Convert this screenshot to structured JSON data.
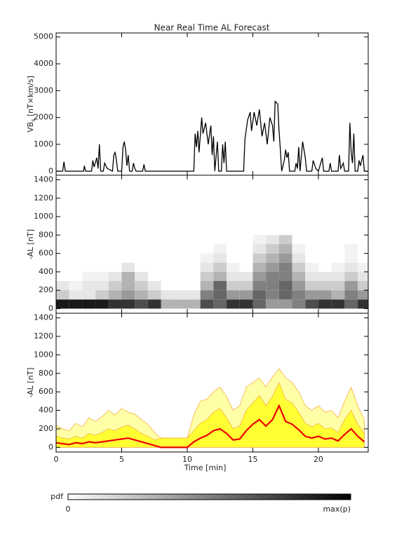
{
  "chart_data": [
    {
      "type": "line",
      "title": "Near Real Time AL Forecast",
      "ylabel": [
        "VB",
        "s",
        " [nT×km/s]"
      ],
      "xlim": [
        0,
        23.8
      ],
      "xticks": [
        0,
        5,
        10,
        15,
        20
      ],
      "show_xtick_labels": false,
      "ylim": [
        -150,
        5150
      ],
      "yticks": [
        0,
        1000,
        2000,
        3000,
        4000,
        5000
      ],
      "color": "#000000",
      "x": [
        0,
        0.5,
        0.6,
        0.7,
        2.1,
        2.15,
        2.25,
        2.7,
        2.8,
        2.9,
        3.1,
        3.2,
        3.3,
        3.4,
        3.6,
        3.7,
        3.9,
        4.3,
        4.4,
        4.5,
        4.6,
        4.7,
        5.0,
        5.1,
        5.2,
        5.3,
        5.4,
        5.5,
        5.6,
        5.8,
        5.9,
        6.0,
        6.1,
        6.6,
        6.7,
        6.8,
        10.5,
        10.6,
        10.7,
        10.8,
        10.9,
        11.1,
        11.2,
        11.4,
        11.6,
        11.8,
        11.9,
        12.0,
        12.1,
        12.3,
        12.4,
        12.6,
        12.7,
        12.8,
        12.9,
        13.0,
        14.3,
        14.4,
        14.6,
        14.8,
        14.9,
        15.1,
        15.3,
        15.5,
        15.7,
        15.9,
        16.1,
        16.3,
        16.5,
        16.6,
        16.7,
        16.9,
        17.0,
        17.1,
        17.2,
        17.4,
        17.5,
        17.6,
        17.7,
        17.8,
        18.2,
        18.3,
        18.4,
        18.5,
        18.6,
        18.8,
        19.0,
        19.1,
        19.5,
        19.6,
        19.8,
        20.0,
        20.3,
        20.4,
        20.8,
        20.9,
        21.0,
        21.5,
        21.6,
        21.7,
        21.9,
        22.0,
        22.3,
        22.4,
        22.5,
        22.6,
        22.7,
        22.8,
        23.0,
        23.1,
        23.2,
        23.4,
        23.5,
        23.8
      ],
      "values": [
        0,
        0,
        350,
        0,
        0,
        200,
        0,
        0,
        400,
        150,
        500,
        100,
        1000,
        0,
        0,
        300,
        100,
        0,
        600,
        700,
        400,
        0,
        0,
        900,
        1100,
        800,
        200,
        600,
        0,
        0,
        300,
        100,
        0,
        0,
        250,
        0,
        0,
        1400,
        900,
        1500,
        700,
        2000,
        1400,
        1800,
        1000,
        1700,
        600,
        1300,
        0,
        1100,
        0,
        0,
        1000,
        300,
        1100,
        0,
        0,
        1200,
        1900,
        2200,
        1500,
        2200,
        1700,
        2300,
        1300,
        1800,
        1000,
        2000,
        1700,
        1100,
        2600,
        2500,
        1500,
        800,
        0,
        400,
        800,
        500,
        700,
        0,
        0,
        300,
        100,
        900,
        0,
        1100,
        500,
        0,
        0,
        400,
        100,
        0,
        500,
        0,
        0,
        300,
        0,
        0,
        600,
        100,
        300,
        0,
        0,
        1800,
        700,
        300,
        1400,
        0,
        0,
        400,
        200,
        600,
        0,
        0
      ]
    },
    {
      "type": "heatmap",
      "ylabel": [
        "-AL [nT]"
      ],
      "xlim": [
        0,
        23.8
      ],
      "xticks": [
        0,
        5,
        10,
        15,
        20
      ],
      "show_xtick_labels": false,
      "ylim": [
        -50,
        1450
      ],
      "yticks": [
        0,
        200,
        400,
        600,
        800,
        1000,
        1200,
        1400
      ],
      "x_bins": [
        0,
        1,
        2,
        3,
        4,
        5,
        6,
        7,
        8,
        9,
        10,
        11,
        12,
        13,
        14,
        15,
        16,
        17,
        18,
        19,
        20,
        21,
        22,
        23,
        24
      ],
      "y_bins": [
        0,
        100,
        200,
        300,
        400,
        500,
        600,
        700,
        800
      ],
      "z": [
        [
          0.9,
          0.9,
          0.9,
          0.9,
          0.8,
          0.8,
          0.7,
          0.8,
          0.3,
          0.3,
          0.3,
          0.7,
          0.6,
          0.8,
          0.8,
          0.6,
          0.4,
          0.4,
          0.5,
          0.7,
          0.8,
          0.8,
          0.6,
          0.8
        ],
        [
          0.2,
          0.1,
          0.1,
          0.2,
          0.3,
          0.4,
          0.3,
          0.2,
          0.1,
          0.1,
          0.1,
          0.5,
          0.6,
          0.4,
          0.4,
          0.6,
          0.5,
          0.6,
          0.5,
          0.4,
          0.4,
          0.3,
          0.5,
          0.4
        ],
        [
          0.1,
          0.05,
          0.1,
          0.1,
          0.2,
          0.3,
          0.2,
          0.1,
          0,
          0,
          0,
          0.3,
          0.6,
          0.2,
          0.2,
          0.5,
          0.5,
          0.6,
          0.4,
          0.2,
          0.2,
          0.2,
          0.4,
          0.2
        ],
        [
          0,
          0,
          0.05,
          0.05,
          0.1,
          0.3,
          0.1,
          0,
          0,
          0,
          0,
          0.2,
          0.3,
          0.1,
          0.1,
          0.4,
          0.5,
          0.5,
          0.3,
          0.1,
          0.1,
          0.1,
          0.2,
          0.1
        ],
        [
          0,
          0,
          0,
          0,
          0,
          0.1,
          0,
          0,
          0,
          0,
          0,
          0.1,
          0.2,
          0.05,
          0,
          0.3,
          0.4,
          0.5,
          0.2,
          0.05,
          0,
          0.05,
          0.1,
          0.05
        ],
        [
          0,
          0,
          0,
          0,
          0,
          0,
          0,
          0,
          0,
          0,
          0,
          0.05,
          0.1,
          0,
          0,
          0.2,
          0.3,
          0.4,
          0.1,
          0,
          0,
          0,
          0.05,
          0
        ],
        [
          0,
          0,
          0,
          0,
          0,
          0,
          0,
          0,
          0,
          0,
          0,
          0,
          0.05,
          0,
          0,
          0.1,
          0.2,
          0.3,
          0.05,
          0,
          0,
          0,
          0.05,
          0
        ],
        [
          0,
          0,
          0,
          0,
          0,
          0,
          0,
          0,
          0,
          0,
          0,
          0,
          0,
          0,
          0,
          0.05,
          0.1,
          0.2,
          0,
          0,
          0,
          0,
          0,
          0
        ]
      ],
      "colorbar": {
        "label": "pdf",
        "min_label": "0",
        "max_label": "max(p)"
      }
    },
    {
      "type": "area",
      "ylabel": [
        "-AL [nT]"
      ],
      "xlabel": "Time [min]",
      "xlim": [
        0,
        23.8
      ],
      "xticks": [
        0,
        5,
        10,
        15,
        20
      ],
      "show_xtick_labels": true,
      "ylim": [
        -50,
        1450
      ],
      "yticks": [
        0,
        200,
        400,
        600,
        800,
        1000,
        1200,
        1400
      ],
      "x": [
        0,
        0.5,
        1,
        1.5,
        2,
        2.5,
        3,
        3.5,
        4,
        4.5,
        5,
        5.5,
        6,
        6.5,
        7,
        7.5,
        8,
        8.5,
        9,
        9.5,
        10,
        10.5,
        11,
        11.5,
        12,
        12.5,
        13,
        13.5,
        14,
        14.5,
        15,
        15.5,
        16,
        16.5,
        17,
        17.5,
        18,
        18.5,
        19,
        19.5,
        20,
        20.5,
        21,
        21.5,
        22,
        22.5,
        23,
        23.5
      ],
      "series": [
        {
          "color": "#ffffa8",
          "edge_color": "#f5b041",
          "fill": true,
          "values": [
            240,
            200,
            180,
            260,
            220,
            320,
            280,
            330,
            400,
            350,
            420,
            380,
            360,
            300,
            250,
            160,
            100,
            100,
            100,
            100,
            100,
            350,
            500,
            520,
            600,
            650,
            550,
            400,
            450,
            650,
            700,
            750,
            650,
            760,
            850,
            750,
            700,
            600,
            450,
            400,
            450,
            380,
            400,
            320,
            500,
            650,
            450,
            300
          ]
        },
        {
          "color": "#ffff33",
          "edge_color": "#f5b041",
          "fill": true,
          "values": [
            120,
            100,
            90,
            120,
            100,
            150,
            130,
            160,
            200,
            180,
            220,
            240,
            200,
            150,
            120,
            80,
            100,
            100,
            100,
            100,
            100,
            180,
            260,
            300,
            380,
            420,
            320,
            200,
            230,
            400,
            480,
            560,
            450,
            550,
            700,
            520,
            480,
            380,
            260,
            220,
            260,
            200,
            210,
            160,
            300,
            400,
            250,
            150
          ]
        },
        {
          "color": "#ee0000",
          "fill": false,
          "values": [
            50,
            40,
            30,
            50,
            40,
            60,
            50,
            60,
            70,
            80,
            90,
            100,
            80,
            60,
            40,
            20,
            0,
            0,
            0,
            0,
            0,
            60,
            100,
            130,
            180,
            200,
            150,
            80,
            90,
            180,
            250,
            300,
            230,
            300,
            450,
            280,
            250,
            190,
            120,
            100,
            120,
            90,
            100,
            70,
            140,
            200,
            120,
            60
          ]
        }
      ]
    }
  ]
}
